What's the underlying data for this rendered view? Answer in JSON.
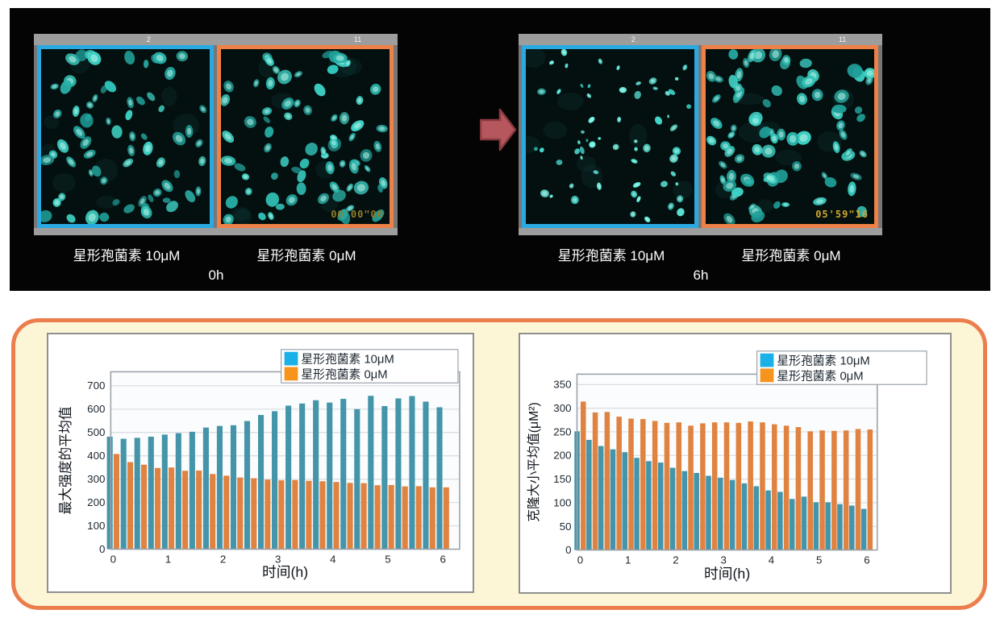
{
  "figure": {
    "top_panel": {
      "background": "#040404",
      "arrow_color": "#b5575c",
      "arrow_edge_color": "#8a3a40",
      "groups": [
        {
          "time_label": "0h",
          "window_numbers": [
            "2",
            "11"
          ],
          "panels": [
            {
              "label": "星形孢菌素 10μM",
              "border_color": "#29aae1",
              "timestamp": ""
            },
            {
              "label": "星形孢菌素 0μM",
              "border_color": "#ee8147",
              "timestamp": "00'00\"00"
            }
          ]
        },
        {
          "time_label": "6h",
          "window_numbers": [
            "2",
            "11"
          ],
          "panels": [
            {
              "label": "星形孢菌素 10μM",
              "border_color": "#29aae1",
              "timestamp": ""
            },
            {
              "label": "星形孢菌素 0μM",
              "border_color": "#ee8147",
              "timestamp": "05'59\"16"
            }
          ]
        }
      ]
    },
    "bottom_panel": {
      "background": "#fcf5d6",
      "border_color": "#ec7e4d",
      "card_border_color": "#8f8f8f"
    }
  },
  "chart_data": [
    {
      "type": "bar",
      "title": "",
      "xlabel": "时间(h)",
      "ylabel": "最大强度的平均值",
      "x": [
        0,
        0.25,
        0.5,
        0.75,
        1,
        1.25,
        1.5,
        1.75,
        2,
        2.25,
        2.5,
        2.75,
        3,
        3.25,
        3.5,
        3.75,
        4,
        4.25,
        4.5,
        4.75,
        5,
        5.25,
        5.5,
        5.75,
        6
      ],
      "xticks": [
        0,
        1,
        2,
        3,
        4,
        5,
        6
      ],
      "yticks": [
        0,
        100,
        200,
        300,
        400,
        500,
        600,
        700
      ],
      "ylim": [
        0,
        760
      ],
      "grid": true,
      "legend_position": "top-right",
      "series": [
        {
          "name": "星形孢菌素 10μM",
          "legend_color": "#1ab0e8",
          "bar_color": "#4495aa",
          "values": [
            482,
            473,
            477,
            482,
            491,
            497,
            503,
            521,
            528,
            531,
            549,
            575,
            591,
            615,
            624,
            638,
            628,
            644,
            600,
            657,
            613,
            646,
            656,
            632,
            608
          ]
        },
        {
          "name": "星形孢菌素  0μM",
          "legend_color": "#f7941d",
          "bar_color": "#e08240",
          "values": [
            408,
            373,
            362,
            348,
            350,
            336,
            337,
            322,
            315,
            307,
            304,
            298,
            295,
            296,
            293,
            291,
            288,
            284,
            283,
            274,
            275,
            269,
            270,
            265,
            265
          ]
        }
      ]
    },
    {
      "type": "bar",
      "title": "",
      "xlabel": "时间(h)",
      "ylabel": "克隆大小平均值(μM²)",
      "x": [
        0,
        0.25,
        0.5,
        0.75,
        1,
        1.25,
        1.5,
        1.75,
        2,
        2.25,
        2.5,
        2.75,
        3,
        3.25,
        3.5,
        3.75,
        4,
        4.25,
        4.5,
        4.75,
        5,
        5.25,
        5.5,
        5.75,
        6
      ],
      "xticks": [
        0,
        1,
        2,
        3,
        4,
        5,
        6
      ],
      "yticks": [
        0,
        50,
        100,
        150,
        200,
        250,
        300,
        350
      ],
      "ylim": [
        0,
        372
      ],
      "grid": true,
      "legend_position": "top-right",
      "series": [
        {
          "name": "星形孢菌素 10μM",
          "legend_color": "#1ab0e8",
          "bar_color": "#4495aa",
          "values": [
            251,
            233,
            220,
            213,
            207,
            195,
            188,
            185,
            174,
            167,
            163,
            157,
            153,
            148,
            141,
            135,
            126,
            123,
            108,
            113,
            101,
            101,
            97,
            94,
            87
          ]
        },
        {
          "name": "星形孢菌素  0μM",
          "legend_color": "#f7941d",
          "bar_color": "#e08240",
          "values": [
            314,
            291,
            292,
            282,
            278,
            277,
            273,
            269,
            270,
            263,
            268,
            270,
            270,
            269,
            272,
            270,
            266,
            263,
            260,
            251,
            253,
            252,
            253,
            256,
            255
          ]
        }
      ]
    }
  ]
}
